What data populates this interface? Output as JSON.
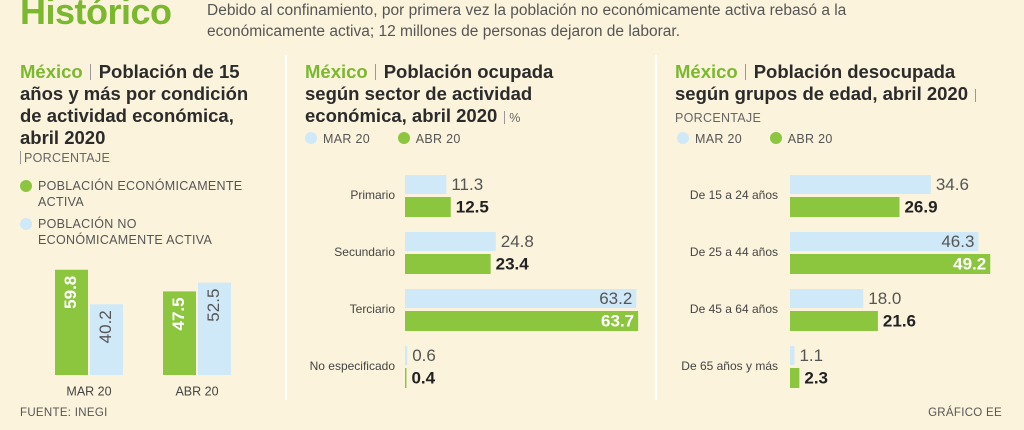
{
  "header": {
    "title": "Histórico",
    "subtitle": "Debido al confinamiento, por primera vez la población no económicamente activa rebasó a la económicamente activa; 12 millones de personas dejaron de laborar."
  },
  "chart_data": [
    {
      "type": "bar",
      "orientation": "vertical",
      "region": "México",
      "title": "Población de 15 años y más por condición de actividad económica, abril 2020",
      "unit": "PORCENTAJE",
      "categories": [
        "MAR 20",
        "ABR 20"
      ],
      "series": [
        {
          "name": "POBLACIÓN ECONÓMICAMENTE ACTIVA",
          "color": "#8cc63f",
          "values": [
            59.8,
            47.5
          ]
        },
        {
          "name": "POBLACIÓN NO ECONÓMICAMENTE ACTIVA",
          "color": "#cfe9f8",
          "values": [
            40.2,
            52.5
          ]
        }
      ]
    },
    {
      "type": "bar",
      "orientation": "horizontal",
      "region": "México",
      "title": "Población ocupada según sector de actividad económica, abril 2020",
      "unit": "%",
      "categories": [
        "Primario",
        "Secundario",
        "Terciario",
        "No especificado"
      ],
      "series": [
        {
          "name": "MAR 20",
          "color": "#cfe9f8",
          "values": [
            11.3,
            24.8,
            63.2,
            0.6
          ]
        },
        {
          "name": "ABR 20",
          "color": "#8cc63f",
          "values": [
            12.5,
            23.4,
            63.7,
            0.4
          ]
        }
      ]
    },
    {
      "type": "bar",
      "orientation": "horizontal",
      "region": "México",
      "title": "Población desocupada según grupos de edad, abril 2020",
      "unit": "PORCENTAJE",
      "categories": [
        "De 15 a 24 años",
        "De 25 a 44 años",
        "De 45 a 64 años",
        "De 65 años y más"
      ],
      "series": [
        {
          "name": "MAR 20",
          "color": "#cfe9f8",
          "values": [
            34.6,
            46.3,
            18.0,
            1.1
          ],
          "value_labels": [
            "34.6",
            "46.3",
            "18.0",
            "1.1"
          ]
        },
        {
          "name": "ABR 20",
          "color": "#8cc63f",
          "values": [
            26.9,
            49.2,
            21.6,
            2.3
          ]
        }
      ]
    }
  ],
  "footer": {
    "source": "FUENTE: INEGI",
    "credit": "GRÁFICO EE"
  }
}
